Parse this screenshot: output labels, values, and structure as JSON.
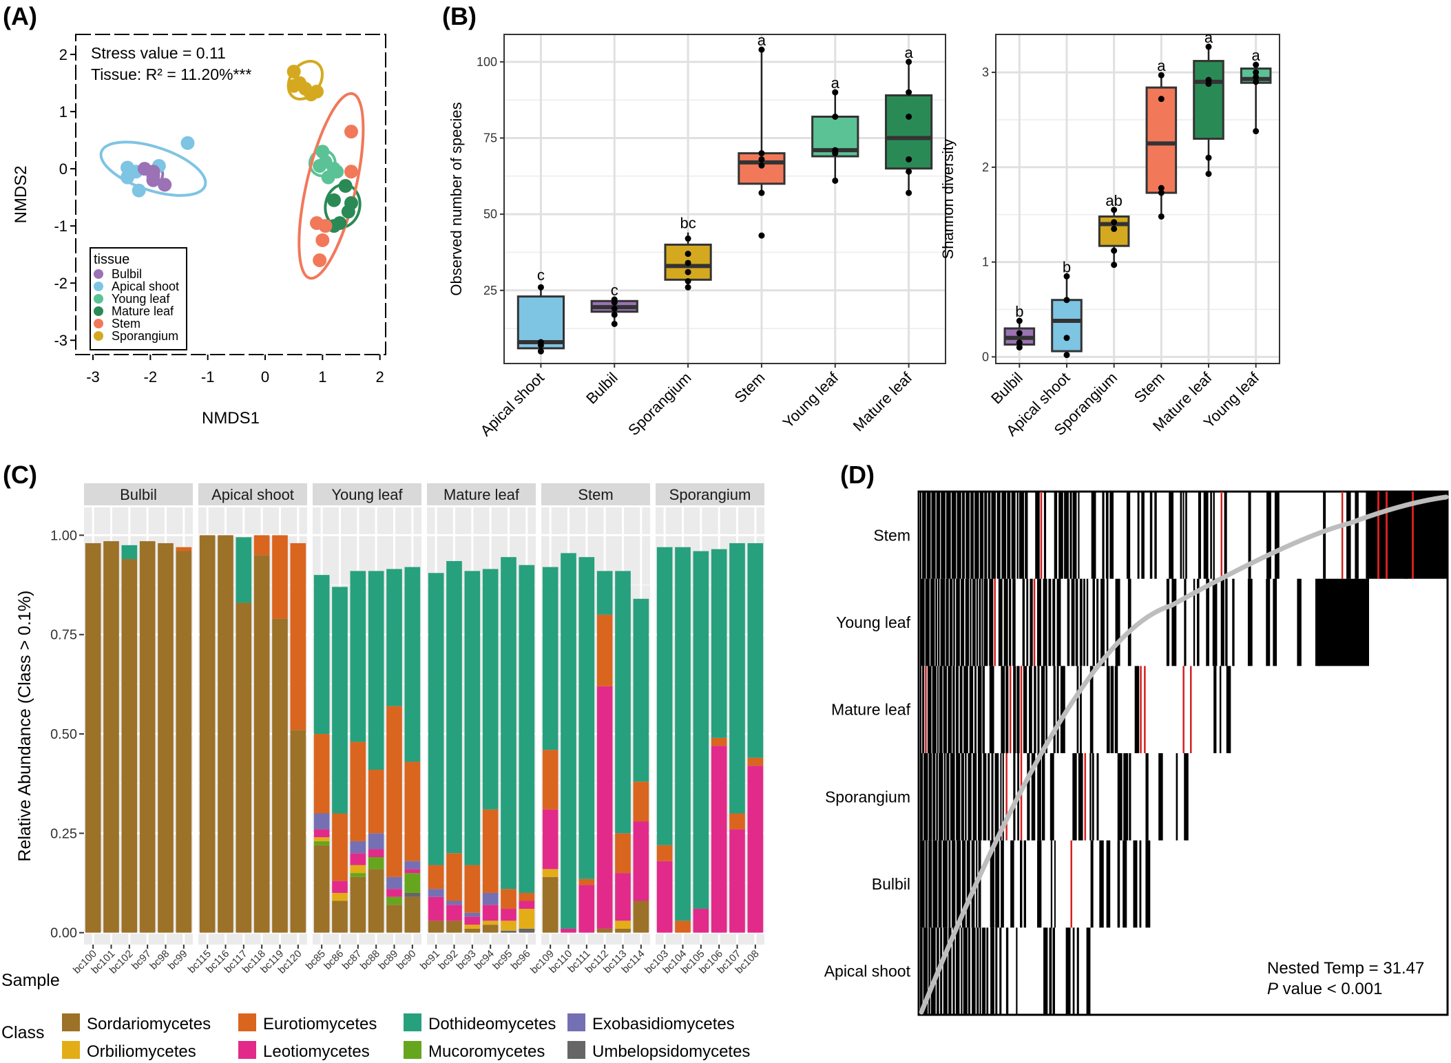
{
  "panel_labels": [
    "(A)",
    "(B)",
    "(C)",
    "(D)"
  ],
  "colors": {
    "Bulbil": "#9b72b5",
    "Apical shoot": "#7ec4e3",
    "Young leaf": "#5bc295",
    "Mature leaf": "#2a8a55",
    "Stem": "#f2785a",
    "Sporangium": "#d4a91f",
    "Sordariomycetes": "#9c7128",
    "Eurotiomycetes": "#d9651f",
    "Dothideomycetes": "#27a07d",
    "Exobasidiomycetes": "#7570b3",
    "Orbiliomycetes": "#e2ad17",
    "Leotiomycetes": "#e22a8a",
    "Mucoromycetes": "#66a61e",
    "Umbelopsidomycetes": "#666666"
  },
  "chart_data": [
    {
      "id": "A",
      "type": "scatter",
      "xlabel": "NMDS1",
      "ylabel": "NMDS2",
      "xlim": [
        -3.3,
        2.1
      ],
      "ylim": [
        -3.25,
        2.35
      ],
      "xticks": [
        -3,
        -2,
        -1,
        0,
        1,
        2
      ],
      "yticks": [
        2,
        1,
        0,
        -1,
        -2,
        -3
      ],
      "annotation_stress": "Stress value = 0.11",
      "annotation_r2": "Tissue: R² = 11.20%***",
      "legend_title": "tissue",
      "legend": [
        "Bulbil",
        "Apical shoot",
        "Young leaf",
        "Mature leaf",
        "Stem",
        "Sporangium"
      ],
      "series": [
        {
          "name": "Apical shoot",
          "points": [
            [
              -2.4,
              0.02
            ],
            [
              -2.25,
              -0.05
            ],
            [
              -2.4,
              -0.15
            ],
            [
              -2.2,
              -0.38
            ],
            [
              -1.35,
              0.45
            ],
            [
              -1.85,
              0.05
            ]
          ],
          "ellipse": {
            "cx": -1.95,
            "cy": 0.0,
            "rx": 1.9,
            "ry": 0.38,
            "angle": 18
          }
        },
        {
          "name": "Bulbil",
          "points": [
            [
              -1.95,
              -0.12
            ],
            [
              -1.75,
              -0.28
            ],
            [
              -1.95,
              -0.2
            ],
            [
              -2.1,
              0.0
            ],
            [
              -1.95,
              -0.05
            ]
          ],
          "ellipse": {
            "cx": -1.9,
            "cy": -0.1,
            "rx": 0.23,
            "ry": 0.14,
            "angle": 5
          }
        },
        {
          "name": "Sporangium",
          "points": [
            [
              0.5,
              1.7
            ],
            [
              0.7,
              1.4
            ],
            [
              0.8,
              1.3
            ],
            [
              0.6,
              1.5
            ],
            [
              0.5,
              1.45
            ],
            [
              0.9,
              1.35
            ]
          ],
          "ellipse": {
            "cx": 0.7,
            "cy": 1.55,
            "rx": 0.72,
            "ry": 0.26,
            "angle": -55
          }
        },
        {
          "name": "Young leaf",
          "points": [
            [
              1.0,
              0.3
            ],
            [
              1.05,
              0.12
            ],
            [
              1.2,
              0.0
            ],
            [
              1.1,
              -0.15
            ],
            [
              0.95,
              0.05
            ],
            [
              1.25,
              -0.05
            ]
          ],
          "ellipse": {
            "cx": 1.0,
            "cy": 0.1,
            "rx": 0.45,
            "ry": 0.22,
            "angle": -60
          }
        },
        {
          "name": "Mature leaf",
          "points": [
            [
              1.4,
              -0.3
            ],
            [
              1.2,
              -0.55
            ],
            [
              1.5,
              -0.6
            ],
            [
              1.45,
              -0.75
            ],
            [
              1.3,
              -0.95
            ],
            [
              1.2,
              -1.0
            ]
          ],
          "ellipse": {
            "cx": 1.35,
            "cy": -0.65,
            "rx": 0.75,
            "ry": 0.3,
            "angle": -80
          }
        },
        {
          "name": "Stem",
          "points": [
            [
              1.5,
              0.65
            ],
            [
              1.5,
              -0.05
            ],
            [
              0.9,
              -0.95
            ],
            [
              1.05,
              -1.0
            ],
            [
              1.0,
              -1.25
            ],
            [
              0.95,
              -1.6
            ]
          ],
          "ellipse": {
            "cx": 1.15,
            "cy": -0.3,
            "rx": 3.3,
            "ry": 0.43,
            "angle": -77
          }
        }
      ]
    },
    {
      "id": "B1",
      "type": "box",
      "ylabel": "Observed number of species",
      "ylim": [
        1,
        109
      ],
      "yticks": [
        25,
        50,
        75,
        100
      ],
      "categories": [
        "Apical shoot",
        "Bulbil",
        "Sporangium",
        "Stem",
        "Young leaf",
        "Mature leaf"
      ],
      "boxes": [
        {
          "q1": 6,
          "median": 8,
          "q3": 23,
          "whisker_low": 5,
          "whisker_high": 27,
          "letter": "c",
          "points": [
            5,
            7,
            8,
            26
          ]
        },
        {
          "q1": 18,
          "median": 19.5,
          "q3": 21.5,
          "whisker_low": 14,
          "whisker_high": 22,
          "letter": "c",
          "points": [
            14,
            17,
            19,
            21,
            22
          ]
        },
        {
          "q1": 28.5,
          "median": 33,
          "q3": 40,
          "whisker_low": 26,
          "whisker_high": 44,
          "letter": "bc",
          "points": [
            26,
            28,
            31,
            34,
            37,
            42
          ]
        },
        {
          "q1": 60,
          "median": 67,
          "q3": 70,
          "whisker_low": 57,
          "whisker_high": 104,
          "letter": "a",
          "points": [
            43,
            57,
            66,
            68,
            70,
            104
          ]
        },
        {
          "q1": 69,
          "median": 71,
          "q3": 82,
          "whisker_low": 61,
          "whisker_high": 90,
          "letter": "a",
          "points": [
            61,
            70,
            71,
            82,
            90
          ]
        },
        {
          "q1": 65,
          "median": 75,
          "q3": 89,
          "whisker_low": 57,
          "whisker_high": 100,
          "letter": "a",
          "points": [
            57,
            64,
            68,
            82,
            90,
            100
          ]
        }
      ]
    },
    {
      "id": "B2",
      "type": "box",
      "ylabel": "Shannon diversity",
      "ylim": [
        -0.07,
        3.4
      ],
      "yticks": [
        0,
        1,
        2,
        3
      ],
      "categories": [
        "Bulbil",
        "Apical shoot",
        "Sporangium",
        "Stem",
        "Mature leaf",
        "Young leaf"
      ],
      "boxes": [
        {
          "q1": 0.13,
          "median": 0.2,
          "q3": 0.3,
          "whisker_low": 0.1,
          "whisker_high": 0.38,
          "letter": "b",
          "points": [
            0.1,
            0.15,
            0.25,
            0.38
          ]
        },
        {
          "q1": 0.06,
          "median": 0.38,
          "q3": 0.6,
          "whisker_low": 0.02,
          "whisker_high": 0.85,
          "letter": "b",
          "points": [
            0.02,
            0.2,
            0.6,
            0.85
          ]
        },
        {
          "q1": 1.17,
          "median": 1.4,
          "q3": 1.48,
          "whisker_low": 0.97,
          "whisker_high": 1.55,
          "letter": "ab",
          "points": [
            0.97,
            1.12,
            1.35,
            1.42,
            1.55
          ]
        },
        {
          "q1": 1.73,
          "median": 2.25,
          "q3": 2.84,
          "whisker_low": 1.48,
          "whisker_high": 2.97,
          "letter": "a",
          "points": [
            1.48,
            1.73,
            1.78,
            2.72,
            2.97
          ]
        },
        {
          "q1": 2.3,
          "median": 2.9,
          "q3": 3.12,
          "whisker_low": 1.93,
          "whisker_high": 3.27,
          "letter": "a",
          "points": [
            1.93,
            2.1,
            2.88,
            2.92,
            3.27
          ]
        },
        {
          "q1": 2.89,
          "median": 2.93,
          "q3": 3.04,
          "whisker_low": 2.38,
          "whisker_high": 3.08,
          "letter": "a",
          "points": [
            2.38,
            2.9,
            2.95,
            3.0,
            3.08
          ]
        }
      ]
    },
    {
      "id": "C",
      "type": "bar",
      "ylabel": "Relative Abundance (Class > 0.1%)",
      "ylim": [
        -0.03,
        1.07
      ],
      "yticks": [
        "0.00",
        "0.25",
        "0.50",
        "0.75",
        "1.00"
      ],
      "x_axis_title": "Sample",
      "legend_title": "Class",
      "legend_row1": [
        "Sordariomycetes",
        "Eurotiomycetes",
        "Dothideomycetes",
        "Exobasidiomycetes"
      ],
      "legend_row2": [
        "Orbiliomycetes",
        "Leotiomycetes",
        "Mucoromycetes",
        "Umbelopsidomycetes"
      ],
      "stack_order": [
        "Sordariomycetes",
        "Umbelopsidomycetes",
        "Mucoromycetes",
        "Orbiliomycetes",
        "Leotiomycetes",
        "Exobasidiomycetes",
        "Eurotiomycetes",
        "Dothideomycetes"
      ],
      "facets": [
        {
          "name": "Bulbil",
          "samples": [
            "bc100",
            "bc101",
            "bc102",
            "bc97",
            "bc98",
            "bc99"
          ],
          "values": [
            {
              "Sordariomycetes": 0.98
            },
            {
              "Sordariomycetes": 0.985
            },
            {
              "Sordariomycetes": 0.94,
              "Dothideomycetes": 0.035
            },
            {
              "Sordariomycetes": 0.985
            },
            {
              "Sordariomycetes": 0.98
            },
            {
              "Sordariomycetes": 0.96,
              "Eurotiomycetes": 0.01
            }
          ]
        },
        {
          "name": "Apical shoot",
          "samples": [
            "bc115",
            "bc116",
            "bc117",
            "bc118",
            "bc119",
            "bc120"
          ],
          "values": [
            {
              "Sordariomycetes": 1.0
            },
            {
              "Sordariomycetes": 1.0
            },
            {
              "Sordariomycetes": 0.83,
              "Dothideomycetes": 0.165
            },
            {
              "Sordariomycetes": 0.95,
              "Eurotiomycetes": 0.05
            },
            {
              "Sordariomycetes": 0.79,
              "Eurotiomycetes": 0.21
            },
            {
              "Sordariomycetes": 0.51,
              "Eurotiomycetes": 0.47
            }
          ]
        },
        {
          "name": "Young leaf",
          "samples": [
            "bc85",
            "bc86",
            "bc87",
            "bc88",
            "bc89",
            "bc90"
          ],
          "values": [
            {
              "Sordariomycetes": 0.22,
              "Mucoromycetes": 0.01,
              "Orbiliomycetes": 0.01,
              "Leotiomycetes": 0.02,
              "Exobasidiomycetes": 0.04,
              "Eurotiomycetes": 0.2,
              "Dothideomycetes": 0.4
            },
            {
              "Sordariomycetes": 0.08,
              "Orbiliomycetes": 0.02,
              "Leotiomycetes": 0.03,
              "Eurotiomycetes": 0.17,
              "Dothideomycetes": 0.57
            },
            {
              "Sordariomycetes": 0.14,
              "Mucoromycetes": 0.01,
              "Orbiliomycetes": 0.02,
              "Leotiomycetes": 0.03,
              "Exobasidiomycetes": 0.03,
              "Eurotiomycetes": 0.25,
              "Dothideomycetes": 0.43
            },
            {
              "Sordariomycetes": 0.16,
              "Mucoromycetes": 0.03,
              "Leotiomycetes": 0.02,
              "Exobasidiomycetes": 0.04,
              "Eurotiomycetes": 0.16,
              "Dothideomycetes": 0.5
            },
            {
              "Sordariomycetes": 0.07,
              "Mucoromycetes": 0.02,
              "Leotiomycetes": 0.02,
              "Exobasidiomycetes": 0.03,
              "Eurotiomycetes": 0.43,
              "Dothideomycetes": 0.345
            },
            {
              "Sordariomycetes": 0.09,
              "Umbelopsidomycetes": 0.01,
              "Mucoromycetes": 0.05,
              "Leotiomycetes": 0.01,
              "Exobasidiomycetes": 0.02,
              "Eurotiomycetes": 0.25,
              "Dothideomycetes": 0.49
            }
          ]
        },
        {
          "name": "Mature leaf",
          "samples": [
            "bc91",
            "bc92",
            "bc93",
            "bc94",
            "bc95",
            "bc96"
          ],
          "values": [
            {
              "Sordariomycetes": 0.03,
              "Leotiomycetes": 0.06,
              "Exobasidiomycetes": 0.02,
              "Eurotiomycetes": 0.06,
              "Dothideomycetes": 0.735
            },
            {
              "Sordariomycetes": 0.03,
              "Leotiomycetes": 0.04,
              "Exobasidiomycetes": 0.01,
              "Eurotiomycetes": 0.12,
              "Dothideomycetes": 0.735
            },
            {
              "Sordariomycetes": 0.01,
              "Orbiliomycetes": 0.01,
              "Leotiomycetes": 0.02,
              "Exobasidiomycetes": 0.01,
              "Eurotiomycetes": 0.12,
              "Dothideomycetes": 0.74
            },
            {
              "Sordariomycetes": 0.02,
              "Orbiliomycetes": 0.01,
              "Leotiomycetes": 0.04,
              "Exobasidiomycetes": 0.03,
              "Eurotiomycetes": 0.21,
              "Dothideomycetes": 0.605
            },
            {
              "Umbelopsidomycetes": 0.005,
              "Orbiliomycetes": 0.025,
              "Leotiomycetes": 0.03,
              "Eurotiomycetes": 0.05,
              "Dothideomycetes": 0.835
            },
            {
              "Umbelopsidomycetes": 0.01,
              "Orbiliomycetes": 0.05,
              "Leotiomycetes": 0.02,
              "Eurotiomycetes": 0.02,
              "Dothideomycetes": 0.825
            }
          ]
        },
        {
          "name": "Stem",
          "samples": [
            "bc109",
            "bc110",
            "bc111",
            "bc112",
            "bc113",
            "bc114"
          ],
          "values": [
            {
              "Sordariomycetes": 0.14,
              "Orbiliomycetes": 0.02,
              "Leotiomycetes": 0.15,
              "Eurotiomycetes": 0.15,
              "Dothideomycetes": 0.46
            },
            {
              "Leotiomycetes": 0.01,
              "Dothideomycetes": 0.945
            },
            {
              "Leotiomycetes": 0.12,
              "Eurotiomycetes": 0.015,
              "Dothideomycetes": 0.81
            },
            {
              "Sordariomycetes": 0.01,
              "Leotiomycetes": 0.61,
              "Eurotiomycetes": 0.18,
              "Dothideomycetes": 0.11
            },
            {
              "Sordariomycetes": 0.01,
              "Orbiliomycetes": 0.02,
              "Leotiomycetes": 0.12,
              "Eurotiomycetes": 0.1,
              "Dothideomycetes": 0.66
            },
            {
              "Sordariomycetes": 0.08,
              "Leotiomycetes": 0.2,
              "Eurotiomycetes": 0.1,
              "Dothideomycetes": 0.46
            }
          ]
        },
        {
          "name": "Sporangium",
          "samples": [
            "bc103",
            "bc104",
            "bc105",
            "bc106",
            "bc107",
            "bc108"
          ],
          "values": [
            {
              "Leotiomycetes": 0.18,
              "Eurotiomycetes": 0.04,
              "Dothideomycetes": 0.75
            },
            {
              "Eurotiomycetes": 0.03,
              "Dothideomycetes": 0.94
            },
            {
              "Leotiomycetes": 0.06,
              "Dothideomycetes": 0.9
            },
            {
              "Leotiomycetes": 0.47,
              "Eurotiomycetes": 0.02,
              "Dothideomycetes": 0.475
            },
            {
              "Leotiomycetes": 0.26,
              "Eurotiomycetes": 0.04,
              "Dothideomycetes": 0.68
            },
            {
              "Leotiomycetes": 0.42,
              "Eurotiomycetes": 0.02,
              "Dothideomycetes": 0.54
            }
          ]
        }
      ]
    },
    {
      "id": "D",
      "type": "heatmap",
      "rows": [
        "Stem",
        "Young leaf",
        "Mature leaf",
        "Sporangium",
        "Bulbil",
        "Apical shoot"
      ],
      "row_fill_fraction": [
        0.95,
        0.78,
        0.605,
        0.59,
        0.48,
        0.37
      ],
      "annotation_temp": "Nested Temp = 31.47",
      "annotation_p_italic": "P",
      "annotation_p_rest": " value < 0.001"
    }
  ]
}
